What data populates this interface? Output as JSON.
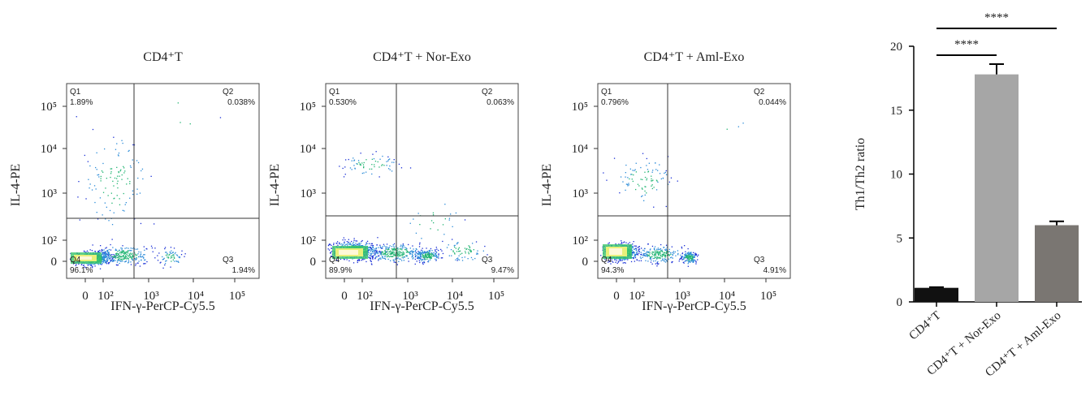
{
  "chart_data": [
    {
      "type": "scatter",
      "title": "CD4⁺T",
      "xlabel": "IFN-γ-PerCP-Cy5.5",
      "ylabel": "IL-4-PE",
      "x_tick_labels": [
        "0",
        "10²",
        "10³",
        "10⁴",
        "10⁵"
      ],
      "y_tick_labels": [
        "0",
        "10²",
        "10³",
        "10⁴",
        "10⁵"
      ],
      "quadrants": [
        {
          "name": "Q1",
          "percent": "1.89%"
        },
        {
          "name": "Q2",
          "percent": "0.038%"
        },
        {
          "name": "Q3",
          "percent": "1.94%"
        },
        {
          "name": "Q4",
          "percent": "96.1%"
        }
      ]
    },
    {
      "type": "scatter",
      "title": "CD4⁺T + Nor-Exo",
      "xlabel": "IFN-γ-PerCP-Cy5.5",
      "ylabel": "IL-4-PE",
      "x_tick_labels": [
        "0",
        "10²",
        "10³",
        "10⁴",
        "10⁵"
      ],
      "y_tick_labels": [
        "0",
        "10²",
        "10³",
        "10⁴",
        "10⁵"
      ],
      "quadrants": [
        {
          "name": "Q1",
          "percent": "0.530%"
        },
        {
          "name": "Q2",
          "percent": "0.063%"
        },
        {
          "name": "Q3",
          "percent": "9.47%"
        },
        {
          "name": "Q4",
          "percent": "89.9%"
        }
      ]
    },
    {
      "type": "scatter",
      "title": "CD4⁺T + Aml-Exo",
      "xlabel": "IFN-γ-PerCP-Cy5.5",
      "ylabel": "IL-4-PE",
      "x_tick_labels": [
        "0",
        "10²",
        "10³",
        "10⁴",
        "10⁵"
      ],
      "y_tick_labels": [
        "0",
        "10²",
        "10³",
        "10⁴",
        "10⁵"
      ],
      "quadrants": [
        {
          "name": "Q1",
          "percent": "0.796%"
        },
        {
          "name": "Q2",
          "percent": "0.044%"
        },
        {
          "name": "Q3",
          "percent": "4.91%"
        },
        {
          "name": "Q4",
          "percent": "94.3%"
        }
      ]
    },
    {
      "type": "bar",
      "categories": [
        "CD4⁺T",
        "CD4⁺T + Nor-Exo",
        "CD4⁺T + Aml-Exo"
      ],
      "values": [
        1.1,
        17.8,
        6.0
      ],
      "errors": [
        0.05,
        0.8,
        0.3
      ],
      "colors": [
        "#111111",
        "#a6a6a6",
        "#7a7672"
      ],
      "ylabel": "Th1/Th2 ratio",
      "ylim": [
        0,
        20
      ],
      "yticks": [
        0,
        5,
        10,
        15,
        20
      ],
      "significance": [
        {
          "from": 0,
          "to": 1,
          "label": "****"
        },
        {
          "from": 0,
          "to": 2,
          "label": "****"
        }
      ]
    }
  ]
}
